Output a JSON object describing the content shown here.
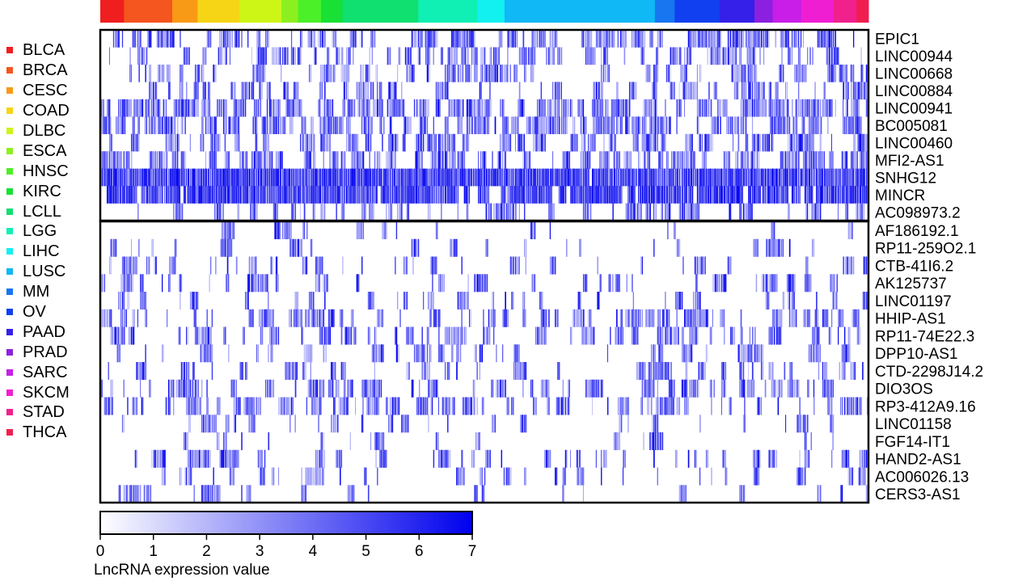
{
  "chart_data": {
    "type": "heatmap",
    "title": "",
    "cancer_types": [
      {
        "name": "BLCA",
        "color": "#f01e1e"
      },
      {
        "name": "BRCA",
        "color": "#f5551e"
      },
      {
        "name": "CESC",
        "color": "#f89a16"
      },
      {
        "name": "COAD",
        "color": "#f5d515"
      },
      {
        "name": "DLBC",
        "color": "#cdf516"
      },
      {
        "name": "ESCA",
        "color": "#8cf020"
      },
      {
        "name": "HNSC",
        "color": "#4cf028"
      },
      {
        "name": "KIRC",
        "color": "#18e034"
      },
      {
        "name": "LCLL",
        "color": "#10e070"
      },
      {
        "name": "LGG",
        "color": "#10f0b4"
      },
      {
        "name": "LIHC",
        "color": "#12f0f0"
      },
      {
        "name": "LUSC",
        "color": "#10b8f5"
      },
      {
        "name": "MM",
        "color": "#1876f0"
      },
      {
        "name": "OV",
        "color": "#1040f0"
      },
      {
        "name": "PAAD",
        "color": "#3420e8"
      },
      {
        "name": "PRAD",
        "color": "#8c20e0"
      },
      {
        "name": "SARC",
        "color": "#c81ee8"
      },
      {
        "name": "SKCM",
        "color": "#f01ed2"
      },
      {
        "name": "STAD",
        "color": "#f0208c"
      },
      {
        "name": "THCA",
        "color": "#f01e50"
      }
    ],
    "top_bar_segments": [
      {
        "type": "BLCA",
        "share": 3.0
      },
      {
        "type": "BRCA",
        "share": 6.1
      },
      {
        "type": "CESC",
        "share": 3.2
      },
      {
        "type": "COAD",
        "share": 5.3
      },
      {
        "type": "DLBC",
        "share": 5.3
      },
      {
        "type": "ESCA",
        "share": 2.1
      },
      {
        "type": "HNSC",
        "share": 2.9
      },
      {
        "type": "KIRC",
        "share": 2.7
      },
      {
        "type": "LCLL",
        "share": 9.6
      },
      {
        "type": "LGG",
        "share": 7.5
      },
      {
        "type": "LIHC",
        "share": 3.4
      },
      {
        "type": "LUSC",
        "share": 19.0
      },
      {
        "type": "MM",
        "share": 2.5
      },
      {
        "type": "OV",
        "share": 5.7
      },
      {
        "type": "PAAD",
        "share": 4.4
      },
      {
        "type": "PRAD",
        "share": 2.3
      },
      {
        "type": "SARC",
        "share": 3.6
      },
      {
        "type": "SKCM",
        "share": 4.1
      },
      {
        "type": "STAD",
        "share": 2.9
      },
      {
        "type": "THCA",
        "share": 1.5
      }
    ],
    "row_groups": [
      {
        "rows": [
          "EPIC1",
          "LINC00944",
          "LINC00668",
          "LINC00884",
          "LINC00941",
          "BC005081",
          "LINC00460",
          "MFI2-AS1",
          "SNHG12",
          "MINCR",
          "AC098973.2"
        ]
      },
      {
        "rows": [
          "AF186192.1",
          "RP11-259O2.1",
          "CTB-41I6.2",
          "AK125737",
          "LINC01197",
          "HHIP-AS1",
          "RP11-74E22.3",
          "DPP10-AS1",
          "CTD-2298J14.2",
          "DIO3OS",
          "RP3-412A9.16",
          "LINC01158",
          "FGF14-IT1",
          "HAND2-AS1",
          "AC006026.13",
          "CERS3-AS1"
        ]
      }
    ],
    "row_density": [
      0.42,
      0.38,
      0.35,
      0.33,
      0.62,
      0.55,
      0.45,
      0.55,
      0.98,
      0.88,
      0.3,
      0.08,
      0.12,
      0.18,
      0.2,
      0.15,
      0.35,
      0.3,
      0.25,
      0.22,
      0.32,
      0.35,
      0.14,
      0.07,
      0.22,
      0.18,
      0.1
    ],
    "color_scale": {
      "min": 0,
      "max": 7,
      "ticks": [
        "0",
        "1",
        "2",
        "3",
        "4",
        "5",
        "6",
        "7"
      ],
      "low_color": "#ffffff",
      "high_color": "#0000ee",
      "label": "LncRNA expression value"
    },
    "grid": false,
    "legend_placement": "left"
  }
}
